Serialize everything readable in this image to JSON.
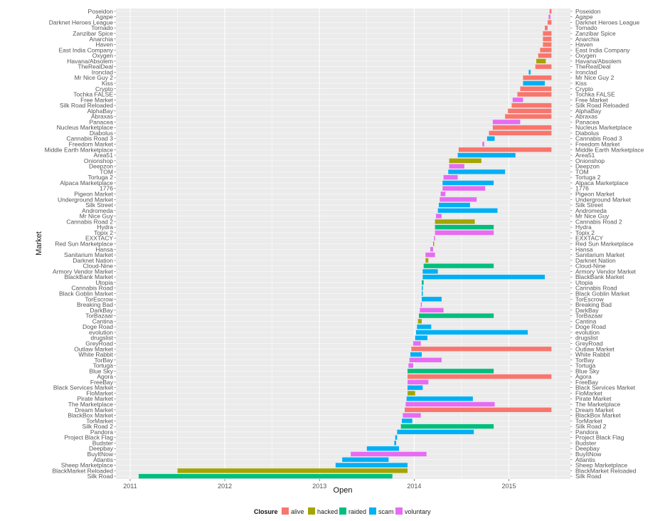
{
  "chart_data": {
    "type": "bar",
    "orientation": "horizontal",
    "title": "",
    "xlabel": "Open",
    "ylabel": "Market",
    "xlim": [
      2010.85,
      2015.65
    ],
    "xticks": [
      "2011",
      "2012",
      "2013",
      "2014",
      "2015"
    ],
    "grid": true,
    "legend": {
      "title": "Closure",
      "position": "bottom",
      "items": [
        {
          "key": "alive",
          "label": "alive",
          "color": "#F8766D"
        },
        {
          "key": "hacked",
          "label": "hacked",
          "color": "#A3A500"
        },
        {
          "key": "raided",
          "label": "raided",
          "color": "#00BF7D"
        },
        {
          "key": "scam",
          "label": "scam",
          "color": "#00B0F6"
        },
        {
          "key": "voluntary",
          "label": "voluntary",
          "color": "#E76BF3"
        }
      ]
    },
    "markets": [
      {
        "name": "Poseidon",
        "start": 2015.43,
        "end": 2015.45,
        "closure": "alive"
      },
      {
        "name": "Agape",
        "start": 2015.42,
        "end": 2015.44,
        "closure": "voluntary"
      },
      {
        "name": "Darknet Heroes League",
        "start": 2015.41,
        "end": 2015.45,
        "closure": "alive"
      },
      {
        "name": "Tornado",
        "start": 2015.38,
        "end": 2015.41,
        "closure": "alive"
      },
      {
        "name": "Zanzibar Spice",
        "start": 2015.36,
        "end": 2015.45,
        "closure": "alive"
      },
      {
        "name": "Anarchia",
        "start": 2015.36,
        "end": 2015.45,
        "closure": "alive"
      },
      {
        "name": "Haven",
        "start": 2015.36,
        "end": 2015.45,
        "closure": "alive"
      },
      {
        "name": "East India Company",
        "start": 2015.33,
        "end": 2015.45,
        "closure": "alive"
      },
      {
        "name": "Oxygen",
        "start": 2015.31,
        "end": 2015.45,
        "closure": "alive"
      },
      {
        "name": "Havana/Absolem",
        "start": 2015.29,
        "end": 2015.39,
        "closure": "hacked"
      },
      {
        "name": "TheRealDeal",
        "start": 2015.28,
        "end": 2015.45,
        "closure": "alive"
      },
      {
        "name": "Ironclad",
        "start": 2015.21,
        "end": 2015.23,
        "closure": "scam"
      },
      {
        "name": "Mr Nice Guy 2",
        "start": 2015.15,
        "end": 2015.45,
        "closure": "alive"
      },
      {
        "name": "Kiss",
        "start": 2015.15,
        "end": 2015.38,
        "closure": "scam"
      },
      {
        "name": "Crypto",
        "start": 2015.12,
        "end": 2015.45,
        "closure": "alive"
      },
      {
        "name": "Tochka FALSE",
        "start": 2015.09,
        "end": 2015.45,
        "closure": "alive"
      },
      {
        "name": "Free Market",
        "start": 2015.04,
        "end": 2015.15,
        "closure": "voluntary"
      },
      {
        "name": "Silk Road Reloaded",
        "start": 2015.03,
        "end": 2015.45,
        "closure": "alive"
      },
      {
        "name": "AlphaBay",
        "start": 2014.99,
        "end": 2015.45,
        "closure": "alive"
      },
      {
        "name": "Abraxas",
        "start": 2014.96,
        "end": 2015.45,
        "closure": "alive"
      },
      {
        "name": "Panacea",
        "start": 2014.83,
        "end": 2015.12,
        "closure": "voluntary"
      },
      {
        "name": "Nucleus Marketplace",
        "start": 2014.83,
        "end": 2015.45,
        "closure": "alive"
      },
      {
        "name": "Diabolus",
        "start": 2014.79,
        "end": 2015.45,
        "closure": "alive"
      },
      {
        "name": "Cannabis Road 3",
        "start": 2014.77,
        "end": 2014.85,
        "closure": "scam"
      },
      {
        "name": "Freedom Market",
        "start": 2014.72,
        "end": 2014.74,
        "closure": "voluntary"
      },
      {
        "name": "Middle Earth Marketplace",
        "start": 2014.47,
        "end": 2015.45,
        "closure": "alive"
      },
      {
        "name": "Area51",
        "start": 2014.46,
        "end": 2015.07,
        "closure": "scam"
      },
      {
        "name": "Onionshop",
        "start": 2014.37,
        "end": 2014.71,
        "closure": "hacked"
      },
      {
        "name": "Deepzon",
        "start": 2014.37,
        "end": 2014.53,
        "closure": "voluntary"
      },
      {
        "name": "TOM",
        "start": 2014.36,
        "end": 2014.96,
        "closure": "scam"
      },
      {
        "name": "Tortuga 2",
        "start": 2014.31,
        "end": 2014.46,
        "closure": "voluntary"
      },
      {
        "name": "Alpaca Marketplace",
        "start": 2014.3,
        "end": 2014.84,
        "closure": "scam"
      },
      {
        "name": "1776",
        "start": 2014.3,
        "end": 2014.75,
        "closure": "voluntary"
      },
      {
        "name": "Pigeon Market",
        "start": 2014.28,
        "end": 2014.33,
        "closure": "voluntary"
      },
      {
        "name": "Underground Market",
        "start": 2014.27,
        "end": 2014.66,
        "closure": "voluntary"
      },
      {
        "name": "Silk Street",
        "start": 2014.26,
        "end": 2014.59,
        "closure": "scam"
      },
      {
        "name": "Andromeda",
        "start": 2014.25,
        "end": 2014.88,
        "closure": "scam"
      },
      {
        "name": "Mr Nice Guy",
        "start": 2014.23,
        "end": 2014.29,
        "closure": "voluntary"
      },
      {
        "name": "Cannabis Road 2",
        "start": 2014.22,
        "end": 2014.64,
        "closure": "hacked"
      },
      {
        "name": "Hydra",
        "start": 2014.22,
        "end": 2014.84,
        "closure": "raided"
      },
      {
        "name": "Topix 2",
        "start": 2014.22,
        "end": 2014.84,
        "closure": "voluntary"
      },
      {
        "name": "EXXTACY",
        "start": 2014.21,
        "end": 2014.22,
        "closure": "voluntary"
      },
      {
        "name": "Red Sun Marketplace",
        "start": 2014.2,
        "end": 2014.21,
        "closure": "hacked"
      },
      {
        "name": "Hansa",
        "start": 2014.17,
        "end": 2014.2,
        "closure": "voluntary"
      },
      {
        "name": "Sanitarium Market",
        "start": 2014.12,
        "end": 2014.22,
        "closure": "voluntary"
      },
      {
        "name": "Darknet Nation",
        "start": 2014.12,
        "end": 2014.15,
        "closure": "hacked"
      },
      {
        "name": "Cloud-Nine",
        "start": 2014.1,
        "end": 2014.84,
        "closure": "raided"
      },
      {
        "name": "Armory Vendor Market",
        "start": 2014.09,
        "end": 2014.25,
        "closure": "scam"
      },
      {
        "name": "BlackBank Market",
        "start": 2014.09,
        "end": 2015.38,
        "closure": "scam"
      },
      {
        "name": "Utopia",
        "start": 2014.08,
        "end": 2014.1,
        "closure": "raided"
      },
      {
        "name": "Cannabis Road",
        "start": 2014.08,
        "end": 2014.09,
        "closure": "scam"
      },
      {
        "name": "Black Goblin Market",
        "start": 2014.08,
        "end": 2014.09,
        "closure": "scam"
      },
      {
        "name": "TorEscrow",
        "start": 2014.08,
        "end": 2014.29,
        "closure": "scam"
      },
      {
        "name": "Breaking Bad",
        "start": 2014.07,
        "end": 2014.08,
        "closure": "voluntary"
      },
      {
        "name": "DarkBay",
        "start": 2014.06,
        "end": 2014.31,
        "closure": "voluntary"
      },
      {
        "name": "TorBazaar",
        "start": 2014.05,
        "end": 2014.84,
        "closure": "raided"
      },
      {
        "name": "Cantina",
        "start": 2014.04,
        "end": 2014.08,
        "closure": "hacked"
      },
      {
        "name": "Doge Road",
        "start": 2014.03,
        "end": 2014.18,
        "closure": "scam"
      },
      {
        "name": "evolution",
        "start": 2014.02,
        "end": 2015.2,
        "closure": "scam"
      },
      {
        "name": "drugslist",
        "start": 2014.01,
        "end": 2014.14,
        "closure": "scam"
      },
      {
        "name": "GreyRoad",
        "start": 2013.99,
        "end": 2014.07,
        "closure": "voluntary"
      },
      {
        "name": "Outlaw Market",
        "start": 2013.97,
        "end": 2015.45,
        "closure": "alive"
      },
      {
        "name": "White Rabbit",
        "start": 2013.96,
        "end": 2014.08,
        "closure": "scam"
      },
      {
        "name": "TorBay",
        "start": 2013.95,
        "end": 2014.29,
        "closure": "voluntary"
      },
      {
        "name": "Tortuga",
        "start": 2013.94,
        "end": 2013.99,
        "closure": "voluntary"
      },
      {
        "name": "Blue Sky",
        "start": 2013.93,
        "end": 2014.84,
        "closure": "raided"
      },
      {
        "name": "Agora",
        "start": 2013.93,
        "end": 2015.45,
        "closure": "alive"
      },
      {
        "name": "FreeBay",
        "start": 2013.93,
        "end": 2014.15,
        "closure": "voluntary"
      },
      {
        "name": "Black Services Market",
        "start": 2013.93,
        "end": 2014.09,
        "closure": "scam"
      },
      {
        "name": "FloMarket",
        "start": 2013.93,
        "end": 2014.01,
        "closure": "hacked"
      },
      {
        "name": "Pirate Market",
        "start": 2013.92,
        "end": 2014.62,
        "closure": "scam"
      },
      {
        "name": "The Marketplace",
        "start": 2013.91,
        "end": 2014.85,
        "closure": "voluntary"
      },
      {
        "name": "Dream Market",
        "start": 2013.9,
        "end": 2015.45,
        "closure": "alive"
      },
      {
        "name": "BlackBox Market",
        "start": 2013.88,
        "end": 2014.07,
        "closure": "voluntary"
      },
      {
        "name": "TorMarket",
        "start": 2013.87,
        "end": 2013.98,
        "closure": "scam"
      },
      {
        "name": "Silk Road 2",
        "start": 2013.86,
        "end": 2014.84,
        "closure": "raided"
      },
      {
        "name": "Pandora",
        "start": 2013.82,
        "end": 2014.63,
        "closure": "scam"
      },
      {
        "name": "Project Black Flag",
        "start": 2013.8,
        "end": 2013.82,
        "closure": "scam"
      },
      {
        "name": "Budster",
        "start": 2013.79,
        "end": 2013.81,
        "closure": "scam"
      },
      {
        "name": "Deepbay",
        "start": 2013.5,
        "end": 2013.84,
        "closure": "scam"
      },
      {
        "name": "BuyItNow",
        "start": 2013.33,
        "end": 2014.13,
        "closure": "voluntary"
      },
      {
        "name": "Atlantis",
        "start": 2013.24,
        "end": 2013.73,
        "closure": "scam"
      },
      {
        "name": "Sheep Marketplace",
        "start": 2013.17,
        "end": 2013.93,
        "closure": "scam"
      },
      {
        "name": "BlackMarket Reloaded",
        "start": 2011.5,
        "end": 2013.93,
        "closure": "hacked"
      },
      {
        "name": "Silk Road",
        "start": 2011.09,
        "end": 2013.77,
        "closure": "raided"
      }
    ]
  }
}
